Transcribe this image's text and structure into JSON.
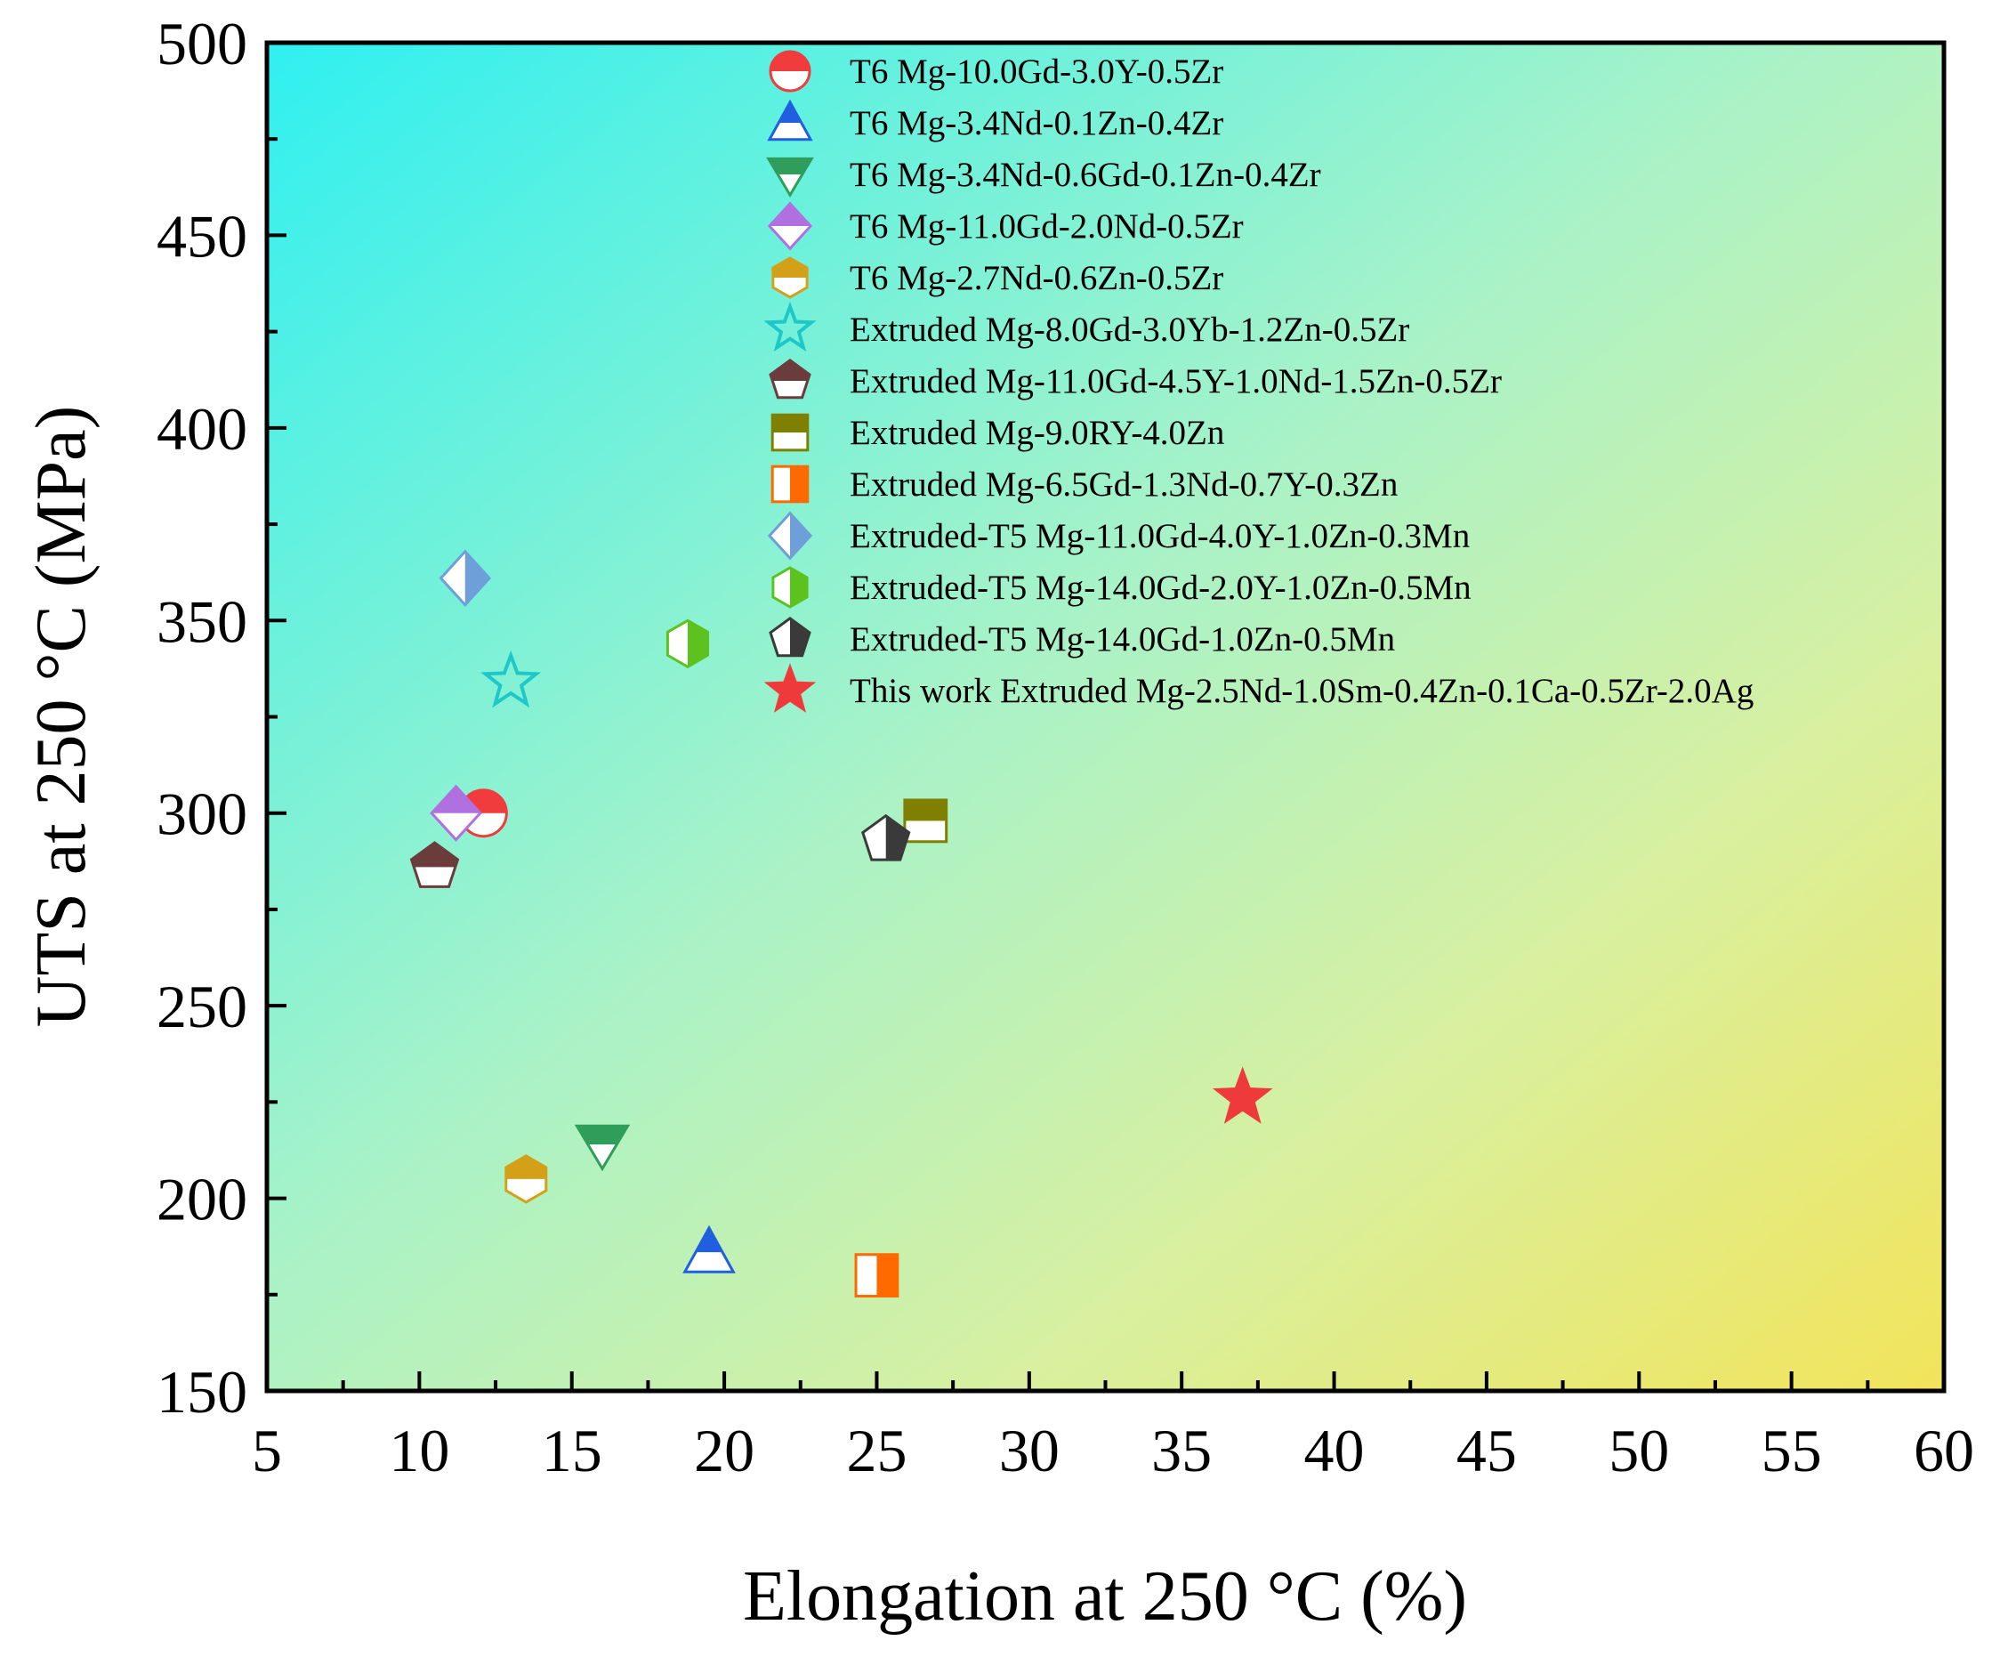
{
  "chart_data": {
    "type": "scatter",
    "title": "",
    "xlabel": "Elongation at 250 °C (%)",
    "ylabel": "UTS at 250 °C (MPa)",
    "xlim": [
      5,
      60
    ],
    "ylim": [
      150,
      500
    ],
    "xticks": [
      "5",
      "10",
      "15",
      "20",
      "25",
      "30",
      "35",
      "40",
      "45",
      "50",
      "55",
      "60"
    ],
    "yticks": [
      "150",
      "200",
      "250",
      "300",
      "350",
      "400",
      "450",
      "500"
    ],
    "legend_position": "top-right",
    "background": "gradient cyan (top-left) to yellow (bottom-right)",
    "series": [
      {
        "name": "T6 Mg-10.0Gd-3.0Y-0.5Zr",
        "marker": "circle",
        "color": "#f03c3c",
        "x": 12.1,
        "y": 300
      },
      {
        "name": "T6 Mg-3.4Nd-0.1Zn-0.4Zr",
        "marker": "triangle-up",
        "color": "#1f5fe0",
        "x": 19.5,
        "y": 186
      },
      {
        "name": "T6 Mg-3.4Nd-0.6Gd-0.1Zn-0.4Zr",
        "marker": "triangle-down",
        "color": "#2e9e5a",
        "x": 16.0,
        "y": 214
      },
      {
        "name": "T6 Mg-11.0Gd-2.0Nd-0.5Zr",
        "marker": "diamond",
        "color": "#b070e0",
        "x": 11.2,
        "y": 300
      },
      {
        "name": "T6 Mg-2.7Nd-0.6Zn-0.5Zr",
        "marker": "hexagon",
        "color": "#d4a017",
        "x": 13.5,
        "y": 205
      },
      {
        "name": "Extruded Mg-8.0Gd-3.0Yb-1.2Zn-0.5Zr",
        "marker": "star",
        "color": "#1fc8c8",
        "x": 13.0,
        "y": 334
      },
      {
        "name": "Extruded Mg-11.0Gd-4.5Y-1.0Nd-1.5Zn-0.5Zr",
        "marker": "pentagon",
        "color": "#6b3c3c",
        "x": 10.5,
        "y": 286
      },
      {
        "name": "Extruded Mg-9.0RY-4.0Zn",
        "marker": "square-half-top",
        "color": "#808000",
        "x": 26.6,
        "y": 298
      },
      {
        "name": "Extruded Mg-6.5Gd-1.3Nd-0.7Y-0.3Zn",
        "marker": "square-half-right",
        "color": "#ff6a00",
        "x": 25.0,
        "y": 180
      },
      {
        "name": "Extruded-T5 Mg-11.0Gd-4.0Y-1.0Zn-0.3Mn",
        "marker": "diamond-half-right",
        "color": "#6f9fd8",
        "x": 11.5,
        "y": 361
      },
      {
        "name": "Extruded-T5 Mg-14.0Gd-2.0Y-1.0Zn-0.5Mn",
        "marker": "hexagon-half-right",
        "color": "#5cc21e",
        "x": 18.8,
        "y": 344
      },
      {
        "name": "Extruded-T5 Mg-14.0Gd-1.0Zn-0.5Mn",
        "marker": "pentagon-half-right",
        "color": "#3a3a3a",
        "x": 25.3,
        "y": 293
      },
      {
        "name": "This work Extruded  Mg-2.5Nd-1.0Sm-0.4Zn-0.1Ca-0.5Zr-2.0Ag",
        "marker": "star-filled",
        "color": "#ee3a3a",
        "x": 37.0,
        "y": 226
      }
    ]
  }
}
